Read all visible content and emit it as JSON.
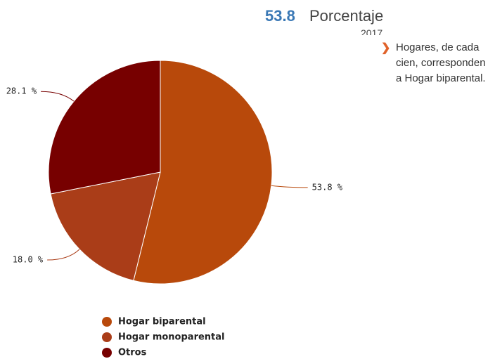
{
  "indicator": {
    "value": "53.8",
    "unit": "Porcentaje",
    "year": "2017",
    "description": "Hogares, de cada cien, corresponden a Hogar biparental."
  },
  "chart_data": {
    "type": "pie",
    "categories": [
      "Hogar biparental",
      "Hogar monoparental",
      "Otros"
    ],
    "values": [
      53.8,
      18.0,
      28.1
    ],
    "value_labels": [
      "53.8 %",
      "18.0 %",
      "28.1 %"
    ],
    "colors": [
      "#b8490b",
      "#aa3d18",
      "#770000"
    ]
  }
}
